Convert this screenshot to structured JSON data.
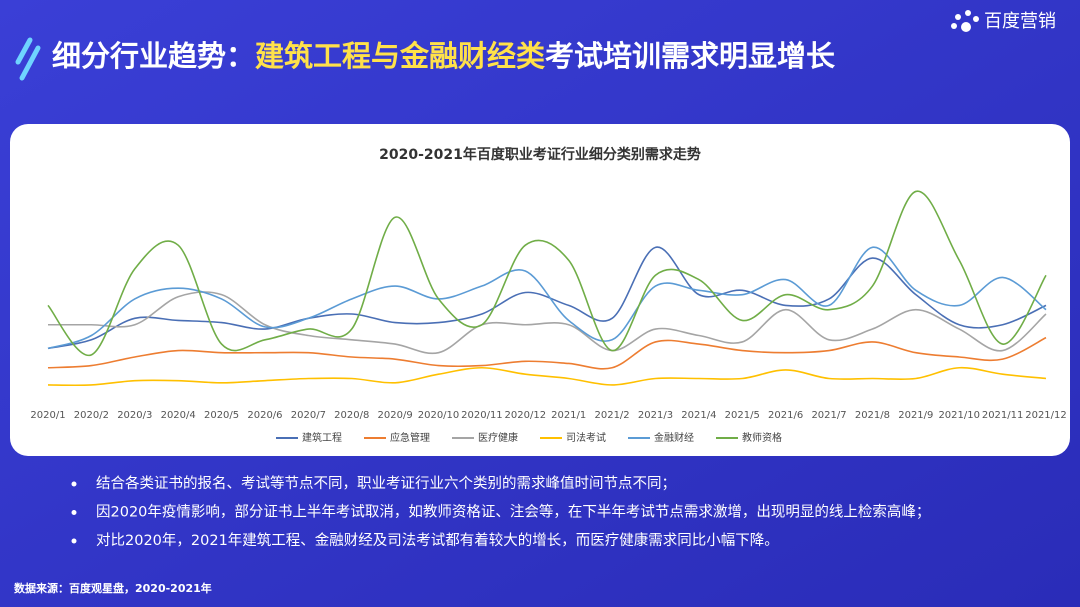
{
  "header": {
    "title_segments": [
      {
        "text": "细分行业趋势：",
        "color": "#ffffff"
      },
      {
        "text": "建筑工程与金融财经类",
        "color": "#ffe14a"
      },
      {
        "text": "考试培训需求明显增长",
        "color": "#ffffff"
      }
    ],
    "logo": "百度营销"
  },
  "chart_data": {
    "type": "line",
    "title": "2020-2021年百度职业考证行业细分类别需求走势",
    "categories": [
      "2020/1",
      "2020/2",
      "2020/3",
      "2020/4",
      "2020/5",
      "2020/6",
      "2020/7",
      "2020/8",
      "2020/9",
      "2020/10",
      "2020/11",
      "2020/12",
      "2021/1",
      "2021/2",
      "2021/3",
      "2021/4",
      "2021/5",
      "2021/6",
      "2021/7",
      "2021/8",
      "2021/9",
      "2021/10",
      "2021/11",
      "2021/12"
    ],
    "ylim": [
      0,
      100
    ],
    "series": [
      {
        "name": "建筑工程",
        "color": "#4a6fb5",
        "values": [
          24,
          28,
          38,
          37,
          36,
          33,
          38,
          40,
          36,
          36,
          40,
          50,
          44,
          38,
          71,
          49,
          51,
          44,
          47,
          66,
          49,
          35,
          35,
          44
        ]
      },
      {
        "name": "应急管理",
        "color": "#ed7d31",
        "values": [
          15,
          16,
          20,
          23,
          22,
          22,
          22,
          20,
          19,
          16,
          16,
          18,
          17,
          15,
          27,
          26,
          23,
          22,
          23,
          27,
          22,
          20,
          19,
          29
        ]
      },
      {
        "name": "医疗健康",
        "color": "#a5a5a5",
        "values": [
          35,
          35,
          35,
          48,
          49,
          35,
          30,
          28,
          26,
          22,
          35,
          35,
          35,
          23,
          33,
          30,
          27,
          42,
          28,
          33,
          42,
          33,
          23,
          40
        ]
      },
      {
        "name": "司法考试",
        "color": "#ffc000",
        "values": [
          7,
          7,
          9,
          9,
          8,
          9,
          10,
          10,
          8,
          12,
          15,
          12,
          10,
          7,
          10,
          10,
          10,
          14,
          10,
          10,
          10,
          15,
          12,
          10
        ]
      },
      {
        "name": "金融财经",
        "color": "#5b9bd5",
        "values": [
          24,
          30,
          47,
          52,
          47,
          34,
          38,
          47,
          53,
          47,
          53,
          60,
          37,
          28,
          53,
          51,
          49,
          56,
          44,
          71,
          51,
          44,
          57,
          42
        ]
      },
      {
        "name": "教师资格",
        "color": "#70ad47",
        "values": [
          44,
          21,
          61,
          72,
          26,
          28,
          33,
          33,
          85,
          47,
          35,
          72,
          65,
          23,
          58,
          56,
          37,
          49,
          42,
          53,
          97,
          65,
          26,
          58
        ]
      }
    ]
  },
  "bullets": [
    "结合各类证书的报名、考试等节点不同，职业考证行业六个类别的需求峰值时间节点不同；",
    "因2020年疫情影响，部分证书上半年考试取消，如教师资格证、注会等，在下半年考试节点需求激增，出现明显的线上检索高峰；",
    "对比2020年，2021年建筑工程、金融财经及司法考试都有着较大的增长，而医疗健康需求同比小幅下降。"
  ],
  "source": "数据来源：百度观星盘，2020-2021年"
}
